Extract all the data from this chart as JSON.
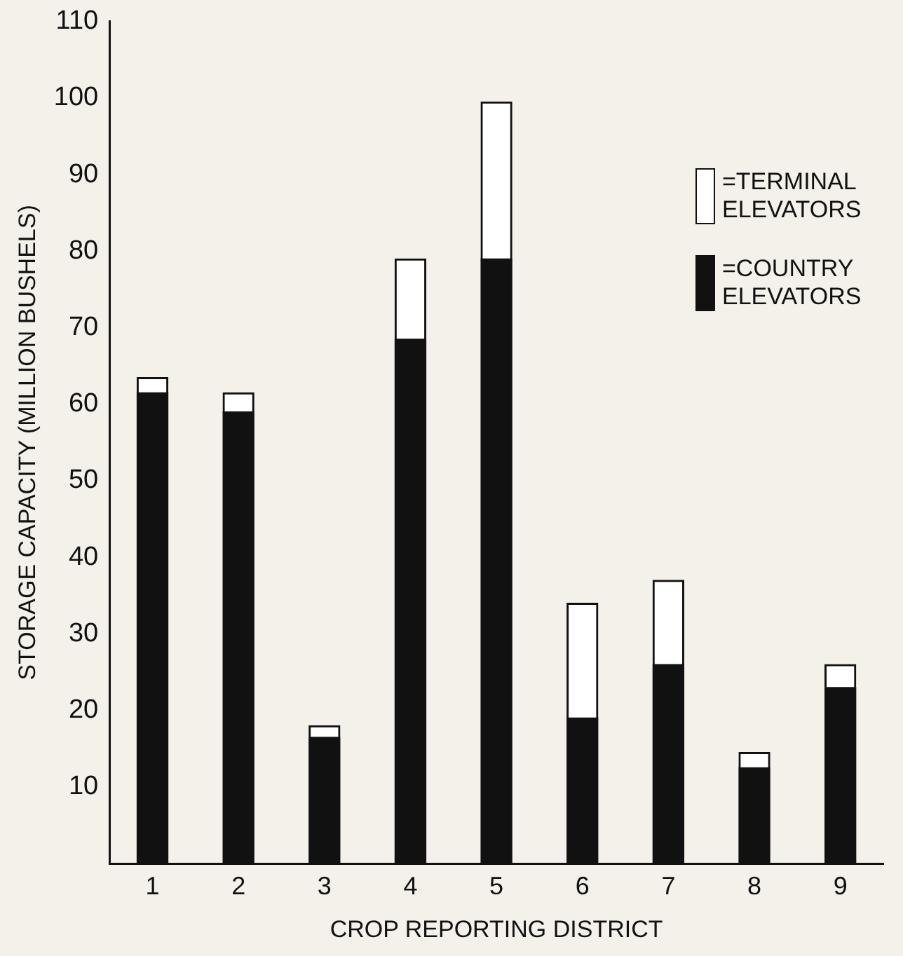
{
  "chart_data": {
    "type": "bar",
    "stacked": true,
    "xlabel": "CROP REPORTING DISTRICT",
    "ylabel": "STORAGE CAPACITY (MILLION BUSHELS)",
    "categories": [
      "1",
      "2",
      "3",
      "4",
      "5",
      "6",
      "7",
      "8",
      "9"
    ],
    "series": [
      {
        "name": "=COUNTRY ELEVATORS",
        "color": "#111111",
        "values": [
          61.5,
          59,
          16.5,
          68.5,
          79,
          19,
          26,
          12.5,
          23
        ]
      },
      {
        "name": "=TERMINAL ELEVATORS",
        "color": "#ffffff",
        "values": [
          2,
          2.5,
          1.5,
          10.5,
          20.5,
          15,
          11,
          2,
          3
        ]
      }
    ],
    "ylim": [
      0,
      110
    ],
    "yticks": [
      10,
      20,
      30,
      40,
      50,
      60,
      70,
      80,
      90,
      100,
      110
    ],
    "grid": false,
    "legend": "top right"
  }
}
